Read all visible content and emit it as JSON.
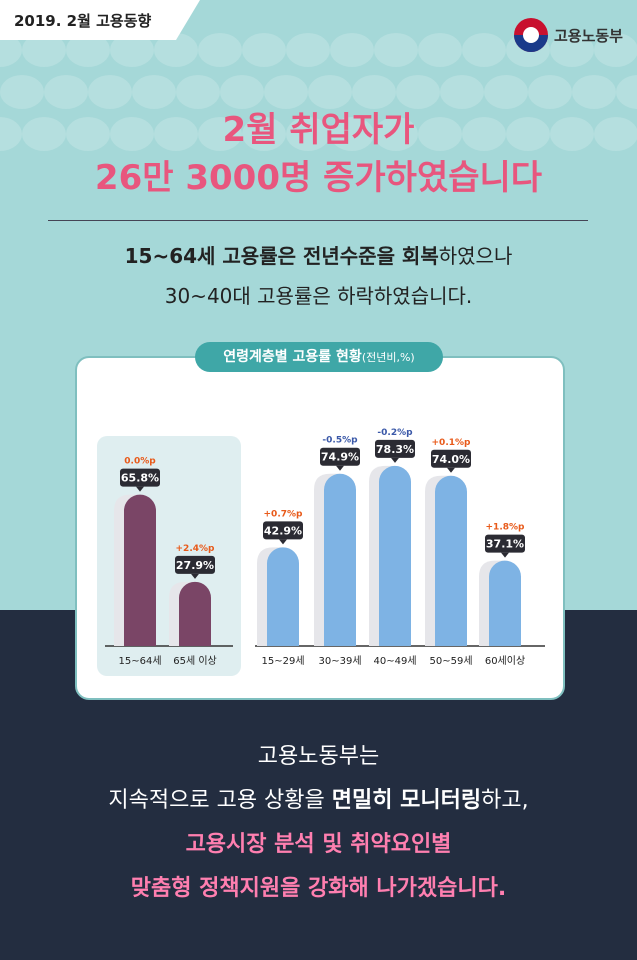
{
  "badge": {
    "label": "2019. 2월 고용동향"
  },
  "logo": {
    "text": "고용노동부",
    "icon": "ministry-logo-icon"
  },
  "headline": {
    "line1": "2월 취업자가",
    "line2": "26만 3000명 증가하였습니다"
  },
  "subhead": {
    "line1_bold1": "15~64세 고용률은 전년수준을 회복",
    "line1_rest": "하였으나",
    "line2": "30~40대 고용률은 하락하였습니다."
  },
  "panel": {
    "title": "연령계층별 고용률 현황",
    "title_suffix": "(전년비,%)"
  },
  "footer": {
    "line1": "고용노동부는",
    "line2_a": "지속적으로 고용 상황을 ",
    "line2_bold": "면밀히 모니터링",
    "line2_b": "하고,",
    "line3": "고용시장 분석 및 취약요인별",
    "line4": "맞춤형 정책지원을 강화해 나가겠습니다."
  },
  "colors": {
    "group1_bar": "#7a4566",
    "group2_bar": "#7eb3e4",
    "increase": "#e85a1a",
    "decrease": "#3a58a8"
  },
  "chart_data": {
    "type": "bar",
    "ylim": [
      0,
      100
    ],
    "categories": [
      "15~64세",
      "65세 이상",
      "15~29세",
      "30~39세",
      "40~49세",
      "50~59세",
      "60세이상"
    ],
    "values": [
      65.8,
      27.9,
      42.9,
      74.9,
      78.3,
      74.0,
      37.1
    ],
    "value_labels": [
      "65.8%",
      "27.9%",
      "42.9%",
      "74.9%",
      "78.3%",
      "74.0%",
      "37.1%"
    ],
    "change_labels": [
      "0.0%p",
      "+2.4%p",
      "+0.7%p",
      "-0.5%p",
      "-0.2%p",
      "+0.1%p",
      "+1.8%p"
    ],
    "change_direction": [
      "up",
      "up",
      "up",
      "down",
      "down",
      "up",
      "up"
    ],
    "groups": [
      [
        0,
        1
      ],
      [
        2,
        3,
        4,
        5,
        6
      ]
    ]
  }
}
